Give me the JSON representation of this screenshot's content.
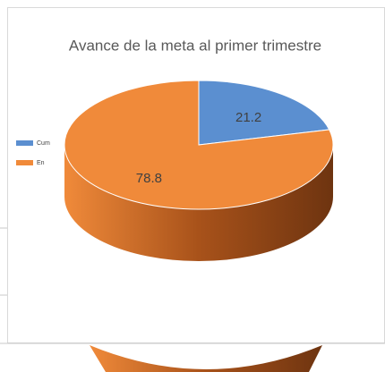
{
  "chart_data": {
    "type": "pie",
    "title": "Avance de la meta al primer trimestre",
    "categories": [
      "Cum",
      "En"
    ],
    "values": [
      21.2,
      78.8
    ],
    "colors": [
      "#5b8fd0",
      "#f08a3a"
    ],
    "legend": "left"
  }
}
